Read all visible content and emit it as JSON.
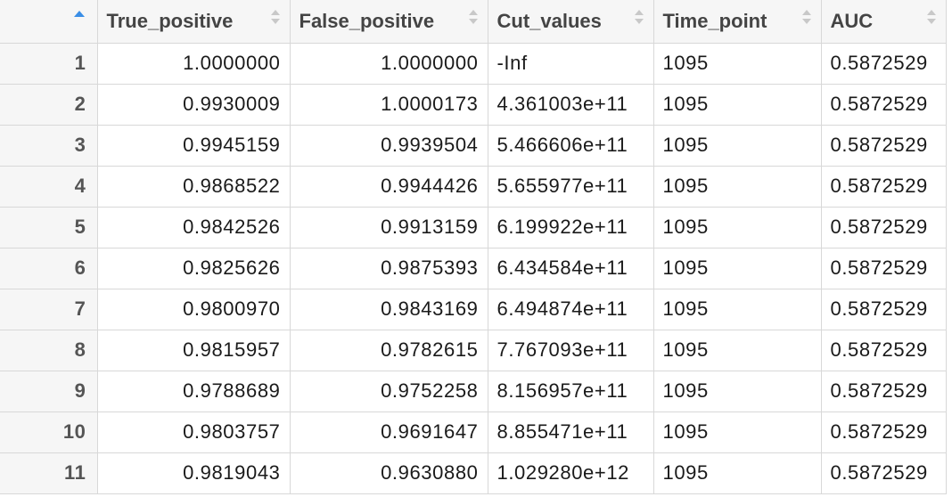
{
  "table": {
    "columns": [
      "True_positive",
      "False_positive",
      "Cut_values",
      "Time_point",
      "AUC"
    ],
    "rows": [
      {
        "index": "1",
        "cells": [
          "1.0000000",
          "1.0000000",
          "-Inf",
          "1095",
          "0.5872529"
        ]
      },
      {
        "index": "2",
        "cells": [
          "0.9930009",
          "1.0000173",
          "4.361003e+11",
          "1095",
          "0.5872529"
        ]
      },
      {
        "index": "3",
        "cells": [
          "0.9945159",
          "0.9939504",
          "5.466606e+11",
          "1095",
          "0.5872529"
        ]
      },
      {
        "index": "4",
        "cells": [
          "0.9868522",
          "0.9944426",
          "5.655977e+11",
          "1095",
          "0.5872529"
        ]
      },
      {
        "index": "5",
        "cells": [
          "0.9842526",
          "0.9913159",
          "6.199922e+11",
          "1095",
          "0.5872529"
        ]
      },
      {
        "index": "6",
        "cells": [
          "0.9825626",
          "0.9875393",
          "6.434584e+11",
          "1095",
          "0.5872529"
        ]
      },
      {
        "index": "7",
        "cells": [
          "0.9800970",
          "0.9843169",
          "6.494874e+11",
          "1095",
          "0.5872529"
        ]
      },
      {
        "index": "8",
        "cells": [
          "0.9815957",
          "0.9782615",
          "7.767093e+11",
          "1095",
          "0.5872529"
        ]
      },
      {
        "index": "9",
        "cells": [
          "0.9788689",
          "0.9752258",
          "8.156957e+11",
          "1095",
          "0.5872529"
        ]
      },
      {
        "index": "10",
        "cells": [
          "0.9803757",
          "0.9691647",
          "8.855471e+11",
          "1095",
          "0.5872529"
        ]
      },
      {
        "index": "11",
        "cells": [
          "0.9819043",
          "0.9630880",
          "1.029280e+12",
          "1095",
          "0.5872529"
        ]
      }
    ]
  },
  "colors": {
    "accent_sort": "#3a8ee6",
    "header_bg": "#f6f6f6",
    "grid_line": "#d8d8d8"
  },
  "icons": {
    "index_sort": "sort-ascending-icon",
    "column_sort": "sort-arrows-icon"
  }
}
